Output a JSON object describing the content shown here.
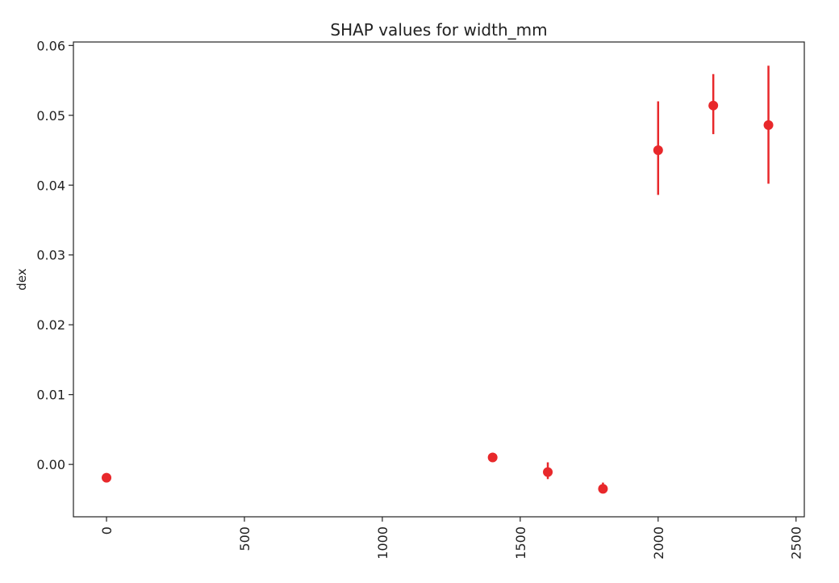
{
  "chart_data": {
    "type": "scatter",
    "title": "SHAP values for width_mm",
    "xlabel": "",
    "ylabel": "dex",
    "xlim": [
      -120,
      2530
    ],
    "ylim": [
      -0.0075,
      0.0605
    ],
    "x_ticks": [
      0,
      500,
      1000,
      1500,
      2000,
      2500
    ],
    "x_tick_labels": [
      "0",
      "500",
      "1000",
      "1500",
      "2000",
      "2500"
    ],
    "y_ticks": [
      0.0,
      0.01,
      0.02,
      0.03,
      0.04,
      0.05,
      0.06
    ],
    "y_tick_labels": [
      "0.00",
      "0.01",
      "0.02",
      "0.03",
      "0.04",
      "0.05",
      "0.06"
    ],
    "grid": false,
    "marker_color": "#e8282b",
    "points": [
      {
        "x": 0,
        "y": -0.0019,
        "err_low": -0.0019,
        "err_high": -0.0019
      },
      {
        "x": 1400,
        "y": 0.001,
        "err_low": 0.001,
        "err_high": 0.001
      },
      {
        "x": 1600,
        "y": -0.0011,
        "err_low": -0.0021,
        "err_high": 0.0003
      },
      {
        "x": 1800,
        "y": -0.0035,
        "err_low": -0.0041,
        "err_high": -0.0026
      },
      {
        "x": 2000,
        "y": 0.045,
        "err_low": 0.0386,
        "err_high": 0.052
      },
      {
        "x": 2200,
        "y": 0.0514,
        "err_low": 0.0473,
        "err_high": 0.0559
      },
      {
        "x": 2400,
        "y": 0.0486,
        "err_low": 0.0402,
        "err_high": 0.0571
      }
    ]
  }
}
